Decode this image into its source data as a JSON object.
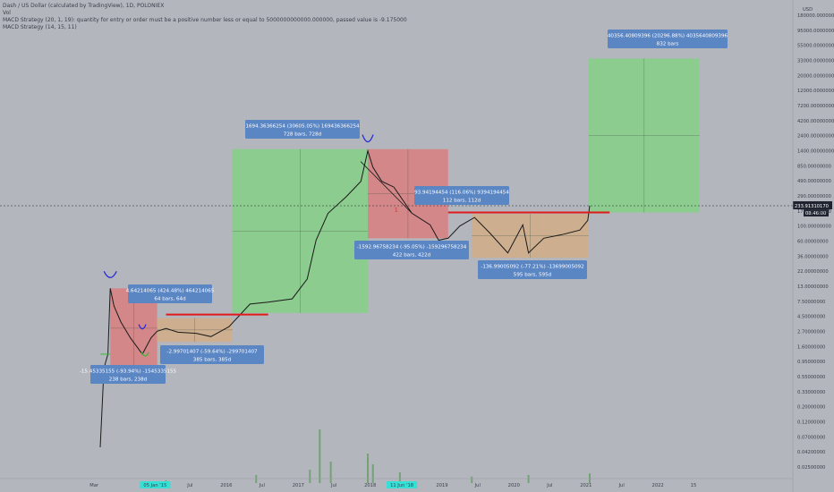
{
  "header": {
    "title": "Dash / US Dollar (calculated by TradingView), 1D, POLONIEX",
    "indicator_vol": "Vol",
    "indicator_macd_error": "MACD Strategy (20, 1, 19): quantity for entry or order must be a positive number less or equal to 5000000000000.000000, passed value is -9.175000",
    "indicator_macd": "MACD Strategy (14, 15, 11)"
  },
  "colors": {
    "background": "#b3b6bc",
    "green_zone": "#7cd67c",
    "red_zone": "#e27474",
    "orange_zone": "#d9ad7c",
    "measure_label": "#5b86c4",
    "resistance_line": "#e01a1a",
    "price_line": "#1a1a1a",
    "current_price_tag": "#1f2430",
    "time_tag_highlight": "#35e0d6"
  },
  "chart_data": {
    "type": "line",
    "title": "Dash / US Dollar (calculated by TradingView), 1D, POLONIEX",
    "currency": "USD",
    "yscale": "log",
    "x_tick_labels": [
      "Mar",
      "05 Jan '15",
      "Jul",
      "2016",
      "Jul",
      "2017",
      "Jul",
      "2018",
      "11 Jun '18",
      "2019",
      "Jul",
      "2020",
      "Jul",
      "2021",
      "Jul",
      "2022",
      "15"
    ],
    "y_tick_labels": [
      "180000.00000000",
      "95000.00000000",
      "55000.00000000",
      "33000.00000000",
      "20000.00000000",
      "12000.00000000",
      "7200.00000000",
      "4200.00000000",
      "2400.00000000",
      "1400.00000000",
      "850.00000000",
      "490.00000000",
      "290.00000000",
      "170.00000000",
      "100.00000000",
      "60.00000000",
      "36.00000000",
      "22.00000000",
      "13.00000000",
      "7.50000000",
      "4.50000000",
      "2.70000000",
      "1.60000000",
      "0.95000000",
      "0.55000000",
      "0.33000000",
      "0.20000000",
      "0.12000000",
      "0.07000000",
      "0.04200000",
      "0.02500000"
    ],
    "current_price": "233.91310170",
    "countdown": "08:46:00",
    "price_series": [
      {
        "date": "2014-04-01",
        "close": 0.05
      },
      {
        "date": "2014-04-20",
        "close": 0.8
      },
      {
        "date": "2014-05-10",
        "close": 1.3
      },
      {
        "date": "2014-05-22",
        "close": 13.0
      },
      {
        "date": "2014-06-10",
        "close": 7.0
      },
      {
        "date": "2014-07-15",
        "close": 4.0
      },
      {
        "date": "2014-09-01",
        "close": 2.3
      },
      {
        "date": "2014-11-01",
        "close": 1.3
      },
      {
        "date": "2014-12-15",
        "close": 2.3
      },
      {
        "date": "2015-01-15",
        "close": 2.9
      },
      {
        "date": "2015-03-01",
        "close": 3.2
      },
      {
        "date": "2015-05-01",
        "close": 2.8
      },
      {
        "date": "2015-08-01",
        "close": 2.7
      },
      {
        "date": "2015-10-15",
        "close": 2.4
      },
      {
        "date": "2016-01-15",
        "close": 3.4
      },
      {
        "date": "2016-05-01",
        "close": 7.5
      },
      {
        "date": "2016-08-01",
        "close": 8.0
      },
      {
        "date": "2016-12-01",
        "close": 9.0
      },
      {
        "date": "2017-02-15",
        "close": 18.0
      },
      {
        "date": "2017-04-01",
        "close": 70.0
      },
      {
        "date": "2017-06-01",
        "close": 180.0
      },
      {
        "date": "2017-09-01",
        "close": 320.0
      },
      {
        "date": "2017-11-15",
        "close": 550.0
      },
      {
        "date": "2017-12-20",
        "close": 1600.0
      },
      {
        "date": "2018-01-15",
        "close": 900.0
      },
      {
        "date": "2018-03-01",
        "close": 550.0
      },
      {
        "date": "2018-05-01",
        "close": 450.0
      },
      {
        "date": "2018-08-01",
        "close": 180.0
      },
      {
        "date": "2018-11-01",
        "close": 120.0
      },
      {
        "date": "2018-12-15",
        "close": 70.0
      },
      {
        "date": "2019-02-01",
        "close": 75.0
      },
      {
        "date": "2019-04-01",
        "close": 115.0
      },
      {
        "date": "2019-06-15",
        "close": 155.0
      },
      {
        "date": "2019-09-01",
        "close": 90.0
      },
      {
        "date": "2019-12-01",
        "close": 45.0
      },
      {
        "date": "2020-02-15",
        "close": 120.0
      },
      {
        "date": "2020-03-15",
        "close": 45.0
      },
      {
        "date": "2020-06-01",
        "close": 75.0
      },
      {
        "date": "2020-09-01",
        "close": 85.0
      },
      {
        "date": "2020-12-01",
        "close": 100.0
      },
      {
        "date": "2021-01-10",
        "close": 140.0
      },
      {
        "date": "2021-01-20",
        "close": 233.91
      }
    ],
    "zones": [
      {
        "color": "red",
        "from": "2014-05-22",
        "to": "2015-01-15",
        "high": 13.0,
        "low": 0.8
      },
      {
        "color": "orange",
        "from": "2015-01-15",
        "to": "2016-02-01",
        "high": 4.6,
        "low": 2.0
      },
      {
        "color": "green",
        "from": "2016-02-01",
        "to": "2017-12-20",
        "high": 1694.36,
        "low": 5.5
      },
      {
        "color": "red",
        "from": "2017-12-20",
        "to": "2019-02-01",
        "high": 1694.36,
        "low": 75.0
      },
      {
        "color": "orange",
        "from": "2019-06-01",
        "to": "2021-01-15",
        "high": 175.0,
        "low": 38.0
      },
      {
        "color": "green",
        "from": "2021-01-15",
        "to": "2022-08-01",
        "high": 40356.41,
        "low": 185.0
      }
    ],
    "resistance_lines": [
      {
        "from": "2015-03-01",
        "to": "2016-08-01",
        "price": 5.2
      },
      {
        "from": "2019-02-01",
        "to": "2021-05-01",
        "price": 185.0
      }
    ],
    "measurements": [
      {
        "line1": "-15.45335155 (-93.94%) -1545335155",
        "line2": "238 bars, 238d"
      },
      {
        "line1": "4.64214065 (424.48%) 464214065",
        "line2": "64 bars, 64d"
      },
      {
        "line1": "-2.99701407 (-59.64%) -299701407",
        "line2": "385 bars, 385d"
      },
      {
        "line1": "1694.36366254 (30605.05%) 169436366254",
        "line2": "728 bars, 728d"
      },
      {
        "line1": "93.94194454 (116.06%) 9394194454",
        "line2": "112 bars, 112d"
      },
      {
        "line1": "-1592.96758234 (-95.05%) -159296758234",
        "line2": "422 bars, 422d"
      },
      {
        "line1": "-136.99005092 (-77.21%) -13699005092",
        "line2": "595 bars, 595d"
      },
      {
        "line1": "40356.40809396 (20296.88%) 4035640809396",
        "line2": "832 bars"
      }
    ],
    "annotations": [
      "1"
    ],
    "volume": [
      {
        "date": "2015-03-01",
        "vol": 0.05
      },
      {
        "date": "2016-06-01",
        "vol": 0.15
      },
      {
        "date": "2017-03-01",
        "vol": 0.25
      },
      {
        "date": "2017-04-20",
        "vol": 1.0
      },
      {
        "date": "2017-06-15",
        "vol": 0.4
      },
      {
        "date": "2017-12-20",
        "vol": 0.55
      },
      {
        "date": "2018-01-15",
        "vol": 0.35
      },
      {
        "date": "2018-06-01",
        "vol": 0.2
      },
      {
        "date": "2019-06-01",
        "vol": 0.12
      },
      {
        "date": "2020-03-15",
        "vol": 0.15
      },
      {
        "date": "2021-01-20",
        "vol": 0.18
      }
    ],
    "grid": false
  }
}
